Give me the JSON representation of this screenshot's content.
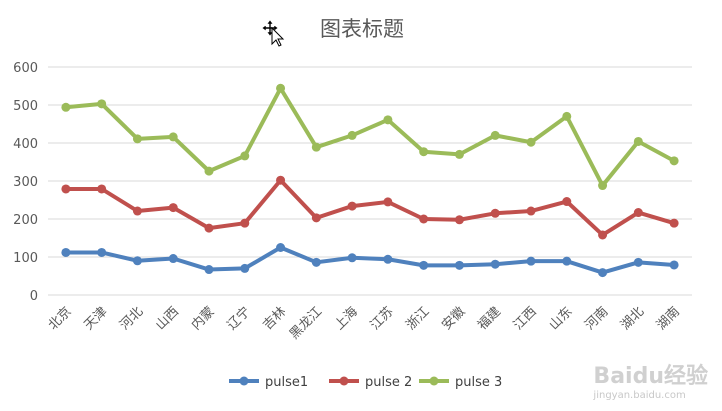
{
  "chart_data": {
    "type": "line",
    "title": "图表标题",
    "ylim": [
      0,
      600
    ],
    "yticks": [
      "0",
      "100",
      "200",
      "300",
      "400",
      "500",
      "600"
    ],
    "grid": true,
    "legend": "bottom",
    "categories": [
      "北京",
      "天津",
      "河北",
      "山西",
      "内蒙",
      "辽宁",
      "吉林",
      "黑龙江",
      "上海",
      "江苏",
      "浙江",
      "安徽",
      "福建",
      "江西",
      "山东",
      "河南",
      "湖北",
      "湖南"
    ],
    "series": [
      {
        "name": "pulse1",
        "color": "#4f81bd",
        "values": [
          112,
          112,
          90,
          96,
          67,
          70,
          125,
          86,
          98,
          94,
          78,
          78,
          81,
          89,
          89,
          59,
          86,
          79
        ]
      },
      {
        "name": "pulse 2",
        "color": "#c0504d",
        "values": [
          279,
          279,
          221,
          230,
          176,
          189,
          302,
          203,
          234,
          245,
          200,
          198,
          215,
          221,
          246,
          158,
          217,
          189
        ]
      },
      {
        "name": "pulse 3",
        "color": "#9bbb59",
        "values": [
          494,
          503,
          411,
          416,
          326,
          366,
          544,
          389,
          420,
          461,
          377,
          370,
          420,
          402,
          470,
          288,
          404,
          353
        ]
      }
    ]
  },
  "watermark": {
    "logo": "Baidu经验",
    "url": "jingyan.baidu.com"
  }
}
